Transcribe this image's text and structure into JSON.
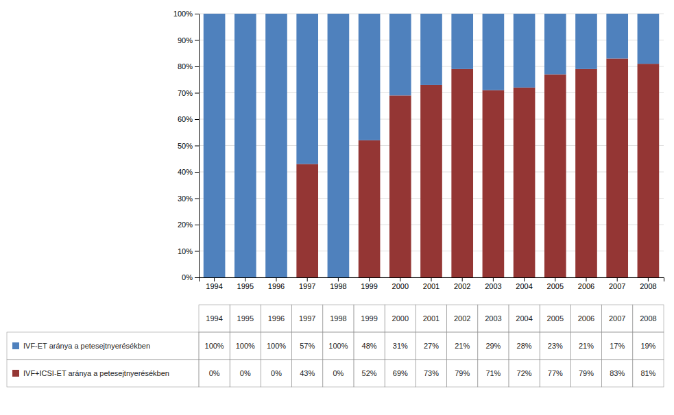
{
  "chart_data": {
    "type": "bar",
    "stacked": true,
    "grid": true,
    "categories": [
      "1994",
      "1995",
      "1996",
      "1997",
      "1998",
      "1999",
      "2000",
      "2001",
      "2002",
      "2003",
      "2004",
      "2005",
      "2006",
      "2007",
      "2008"
    ],
    "series": [
      {
        "name": "IVF+ICSI-ET arányа a petesejtnyerésékben",
        "color": "#943634",
        "values": [
          0,
          0,
          0,
          43,
          0,
          52,
          69,
          73,
          79,
          71,
          72,
          77,
          79,
          83,
          81
        ],
        "value_labels": [
          "0%",
          "0%",
          "0%",
          "43%",
          "0%",
          "52%",
          "69%",
          "73%",
          "79%",
          "71%",
          "72%",
          "77%",
          "79%",
          "83%",
          "81%"
        ]
      },
      {
        "name": "IVF-ET aránya a petesejtnyerésékben",
        "color": "#4F81BD",
        "values": [
          100,
          100,
          100,
          57,
          100,
          48,
          31,
          27,
          21,
          29,
          28,
          23,
          21,
          17,
          19
        ],
        "value_labels": [
          "100%",
          "100%",
          "100%",
          "57%",
          "100%",
          "48%",
          "31%",
          "27%",
          "21%",
          "29%",
          "28%",
          "23%",
          "21%",
          "17%",
          "19%"
        ]
      }
    ],
    "ylim": [
      0,
      100
    ],
    "yticks": [
      {
        "value": 0,
        "label": "0%"
      },
      {
        "value": 10,
        "label": "10%"
      },
      {
        "value": 20,
        "label": "20%"
      },
      {
        "value": 30,
        "label": "30%"
      },
      {
        "value": 40,
        "label": "40%"
      },
      {
        "value": 50,
        "label": "50%"
      },
      {
        "value": 60,
        "label": "60%"
      },
      {
        "value": 70,
        "label": "70%"
      },
      {
        "value": 80,
        "label": "80%"
      },
      {
        "value": 90,
        "label": "90%"
      },
      {
        "value": 100,
        "label": "100%"
      }
    ]
  }
}
